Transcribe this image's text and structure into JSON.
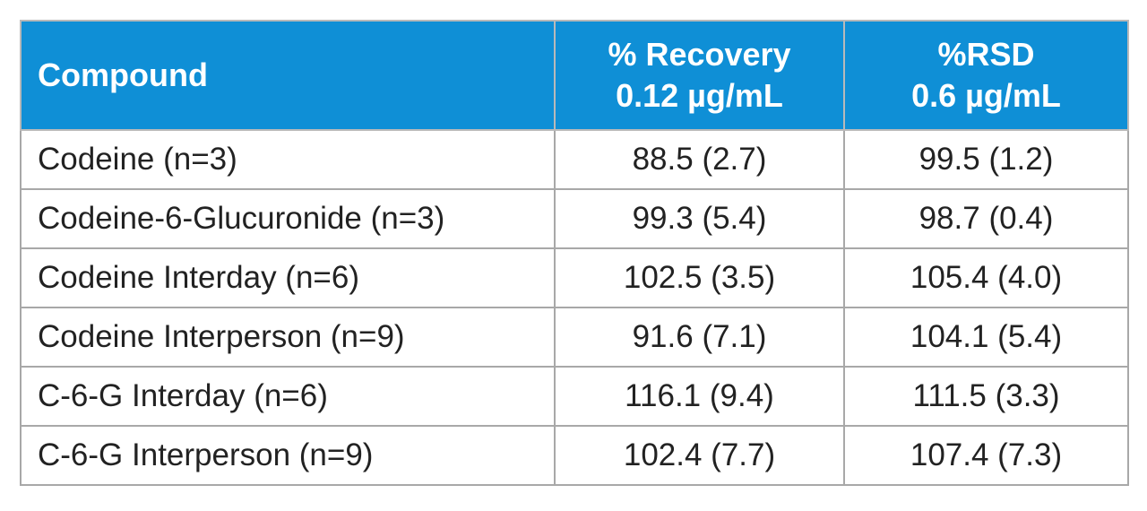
{
  "table": {
    "header_color": "#0F8FD6",
    "headers": {
      "compound": "Compound",
      "recovery": [
        "% Recovery",
        "0.12 µg/mL"
      ],
      "rsd": [
        "%RSD",
        "0.6 µg/mL"
      ]
    },
    "rows": [
      {
        "compound": "Codeine (n=3)",
        "recovery": "88.5 (2.7)",
        "rsd": "99.5 (1.2)"
      },
      {
        "compound": "Codeine-6-Glucuronide (n=3)",
        "recovery": "99.3 (5.4)",
        "rsd": "98.7 (0.4)"
      },
      {
        "compound": "Codeine Interday (n=6)",
        "recovery": "102.5 (3.5)",
        "rsd": "105.4 (4.0)"
      },
      {
        "compound": "Codeine Interperson (n=9)",
        "recovery": "91.6 (7.1)",
        "rsd": "104.1 (5.4)"
      },
      {
        "compound": "C-6-G Interday (n=6)",
        "recovery": "116.1 (9.4)",
        "rsd": "111.5 (3.3)"
      },
      {
        "compound": "C-6-G Interperson (n=9)",
        "recovery": "102.4 (7.7)",
        "rsd": "107.4 (7.3)"
      }
    ]
  }
}
